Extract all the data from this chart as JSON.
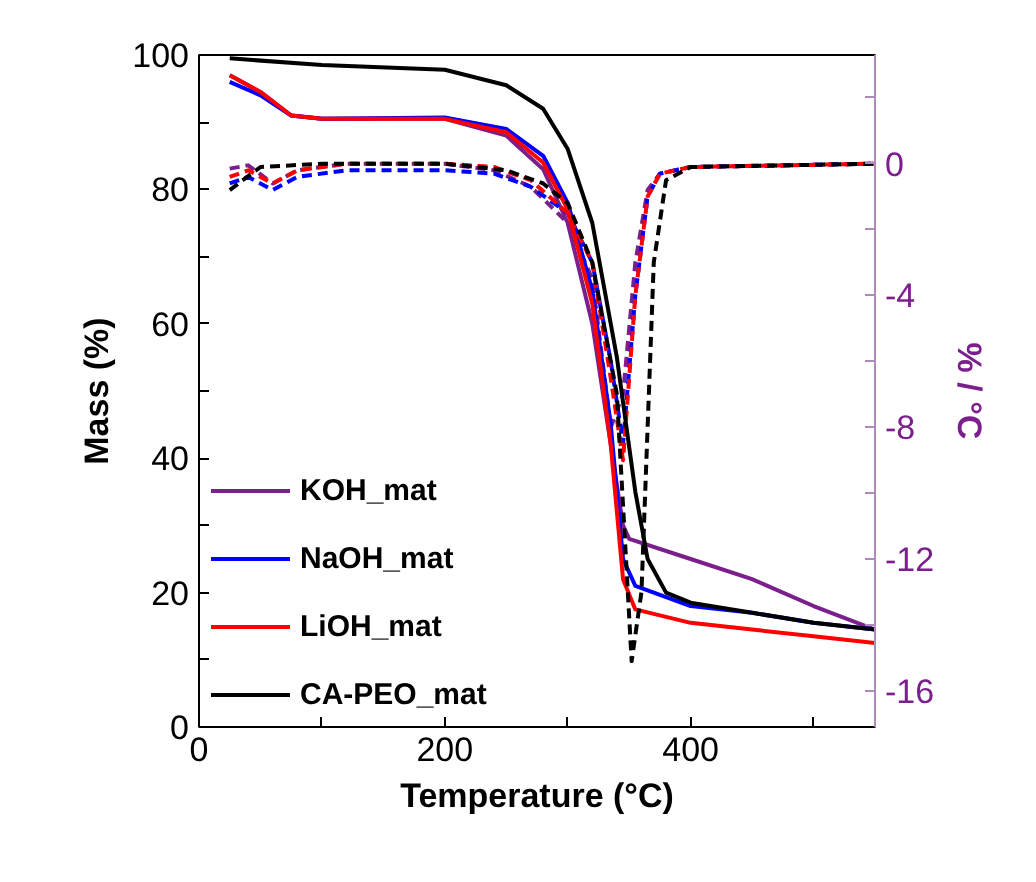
{
  "chart_data": {
    "type": "line",
    "xlabel": "Temperature (°C)",
    "ylabel": "Mass (%)",
    "y2label": "% / °C",
    "xlim": [
      0,
      550
    ],
    "xticks": [
      0,
      {
        "value": 100,
        "label": null
      },
      200,
      {
        "value": 300,
        "label": null
      },
      400,
      {
        "value": 500,
        "label": null
      }
    ],
    "ylim": [
      0,
      100
    ],
    "yticks": [
      0,
      {
        "value": 10,
        "label": null
      },
      20,
      {
        "value": 30,
        "label": null
      },
      40,
      {
        "value": 50,
        "label": null
      },
      60,
      {
        "value": 70,
        "label": null
      },
      80,
      {
        "value": 90,
        "label": null
      },
      100
    ],
    "y2lim": [
      -17.1,
      3.3
    ],
    "y2ticks": [
      {
        "value": 2,
        "label": null
      },
      0,
      {
        "value": -2,
        "label": null
      },
      -4,
      {
        "value": -6,
        "label": null
      },
      -8,
      {
        "value": -10,
        "label": null
      },
      -12,
      {
        "value": -14,
        "label": null
      },
      -16
    ],
    "legend": "bottom left",
    "grid": false,
    "marker": "none",
    "series": [
      {
        "name": "KOH_mat",
        "color": "#7b1f8c",
        "line_style": "solid",
        "x": [
          25,
          50,
          75,
          100,
          200,
          250,
          280,
          300,
          320,
          335,
          345,
          350,
          400,
          450,
          500,
          550
        ],
        "values": [
          97,
          94.5,
          91,
          90.5,
          90.5,
          88,
          83,
          75,
          60,
          42,
          30,
          28,
          25,
          22,
          18,
          14.5
        ]
      },
      {
        "color": "#7b1f8c",
        "line_style": "dashed",
        "axis": "y2",
        "x": [
          25,
          40,
          60,
          80,
          120,
          200,
          240,
          270,
          300,
          320,
          335,
          345,
          355,
          365,
          375,
          400,
          550
        ],
        "values": [
          -0.15,
          -0.05,
          -0.6,
          -0.2,
          0,
          0,
          -0.2,
          -0.7,
          -1.8,
          -3.5,
          -8,
          -7,
          -3,
          -0.8,
          -0.3,
          -0.1,
          0
        ]
      },
      {
        "name": "NaOH_mat",
        "color": "#0000ff",
        "line_style": "solid",
        "x": [
          25,
          50,
          75,
          100,
          200,
          250,
          280,
          300,
          320,
          335,
          345,
          355,
          400,
          450,
          500,
          550
        ],
        "values": [
          96,
          94,
          91,
          90.5,
          90.7,
          89,
          85,
          78,
          65,
          45,
          25,
          21,
          18,
          17,
          15.5,
          14.5
        ]
      },
      {
        "color": "#0000ff",
        "line_style": "dashed",
        "axis": "y2",
        "x": [
          25,
          40,
          60,
          80,
          120,
          200,
          240,
          270,
          300,
          320,
          335,
          345,
          355,
          365,
          375,
          400,
          550
        ],
        "values": [
          -0.6,
          -0.4,
          -0.8,
          -0.4,
          -0.2,
          -0.2,
          -0.3,
          -0.7,
          -1.5,
          -3,
          -6,
          -8.5,
          -4,
          -1,
          -0.3,
          -0.1,
          0
        ]
      },
      {
        "name": "LiOH_mat",
        "color": "#ff0000",
        "line_style": "solid",
        "x": [
          25,
          50,
          75,
          100,
          200,
          250,
          280,
          300,
          320,
          335,
          345,
          355,
          400,
          450,
          500,
          550
        ],
        "values": [
          97,
          94.5,
          91,
          90.5,
          90.5,
          88.5,
          84,
          77,
          63,
          42,
          22,
          17.5,
          15.5,
          14.5,
          13.5,
          12.5
        ]
      },
      {
        "color": "#ff0000",
        "line_style": "dashed",
        "axis": "y2",
        "x": [
          25,
          40,
          60,
          80,
          120,
          200,
          240,
          270,
          300,
          320,
          335,
          345,
          355,
          365,
          375,
          400,
          550
        ],
        "values": [
          -0.4,
          -0.2,
          -0.6,
          -0.2,
          0,
          0,
          -0.1,
          -0.5,
          -1.5,
          -3,
          -6.5,
          -9,
          -4,
          -1,
          -0.3,
          -0.1,
          0
        ]
      },
      {
        "name": "CA-PEO_mat",
        "color": "#000000",
        "line_style": "solid",
        "x": [
          25,
          100,
          200,
          250,
          280,
          300,
          320,
          340,
          355,
          365,
          380,
          400,
          450,
          500,
          550
        ],
        "values": [
          99.5,
          98.5,
          97.8,
          95.5,
          92,
          86,
          75,
          55,
          35,
          25,
          20,
          18.5,
          17,
          15.5,
          14.5
        ]
      },
      {
        "color": "#000000",
        "line_style": "dashed",
        "axis": "y2",
        "x": [
          25,
          50,
          100,
          200,
          250,
          280,
          300,
          320,
          340,
          352,
          360,
          365,
          370,
          380,
          400,
          550
        ],
        "values": [
          -0.8,
          -0.1,
          0,
          0,
          -0.2,
          -0.6,
          -1.2,
          -3,
          -7,
          -15.1,
          -13,
          -8,
          -3,
          -0.5,
          -0.1,
          0
        ]
      }
    ]
  }
}
